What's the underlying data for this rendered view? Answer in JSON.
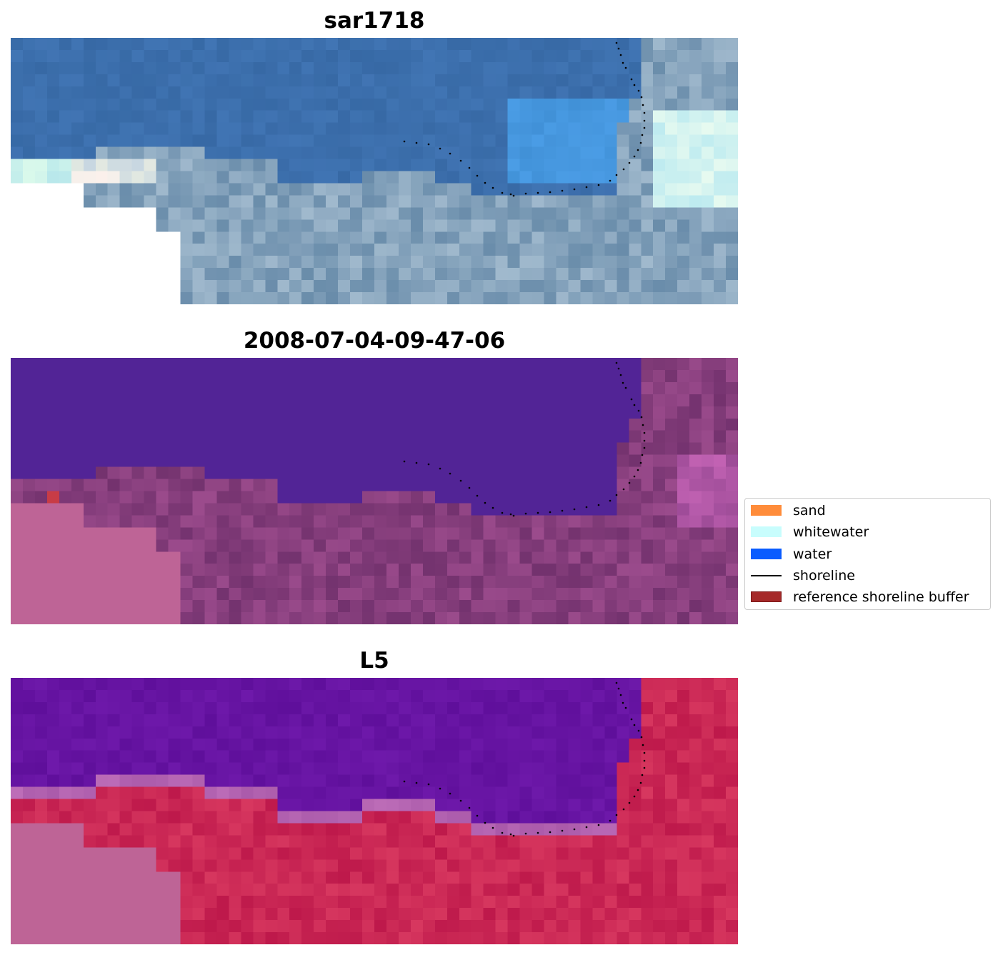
{
  "panels": [
    {
      "title": "sar1718",
      "style": "rgb"
    },
    {
      "title": "2008-07-04-09-47-06",
      "style": "classified"
    },
    {
      "title": "L5",
      "style": "index"
    }
  ],
  "legend": {
    "items": [
      {
        "label": "sand",
        "kind": "patch",
        "color": "#ff8c3a"
      },
      {
        "label": "whitewater",
        "kind": "patch",
        "color": "#c8fdfd"
      },
      {
        "label": "water",
        "kind": "patch",
        "color": "#0a5cff"
      },
      {
        "label": "shoreline",
        "kind": "line",
        "color": "#000000"
      },
      {
        "label": "reference shoreline buffer",
        "kind": "patch",
        "color": "#a52a2a",
        "edge": "#7a1616"
      }
    ]
  }
}
